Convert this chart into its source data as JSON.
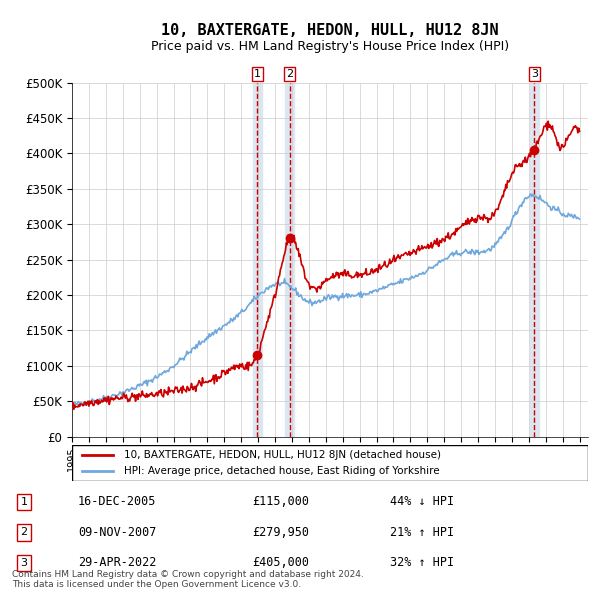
{
  "title": "10, BAXTERGATE, HEDON, HULL, HU12 8JN",
  "subtitle": "Price paid vs. HM Land Registry's House Price Index (HPI)",
  "ylabel": "",
  "ylim": [
    0,
    500000
  ],
  "yticks": [
    0,
    50000,
    100000,
    150000,
    200000,
    250000,
    300000,
    350000,
    400000,
    450000,
    500000
  ],
  "ytick_labels": [
    "£0",
    "£50K",
    "£100K",
    "£150K",
    "£200K",
    "£250K",
    "£300K",
    "£350K",
    "£400K",
    "£450K",
    "£500K"
  ],
  "hpi_color": "#6fa8dc",
  "price_color": "#cc0000",
  "sale_marker_color": "#cc0000",
  "vline_color": "#cc0000",
  "shade_color": "#dce6f1",
  "transaction_label_color": "#cc0000",
  "background_color": "#ffffff",
  "grid_color": "#cccccc",
  "transactions": [
    {
      "id": 1,
      "date_num": 2005.96,
      "price": 115000,
      "date_str": "16-DEC-2005",
      "hpi_pct": "44%",
      "hpi_dir": "↓"
    },
    {
      "id": 2,
      "date_num": 2007.86,
      "price": 279950,
      "date_str": "09-NOV-2007",
      "hpi_pct": "21%",
      "hpi_dir": "↑"
    },
    {
      "id": 3,
      "date_num": 2022.33,
      "price": 405000,
      "date_str": "29-APR-2022",
      "hpi_pct": "32%",
      "hpi_dir": "↑"
    }
  ],
  "legend_entries": [
    "10, BAXTERGATE, HEDON, HULL, HU12 8JN (detached house)",
    "HPI: Average price, detached house, East Riding of Yorkshire"
  ],
  "footer": "Contains HM Land Registry data © Crown copyright and database right 2024.\nThis data is licensed under the Open Government Licence v3.0.",
  "table_rows": [
    [
      1,
      "16-DEC-2005",
      "£115,000",
      "44% ↓ HPI"
    ],
    [
      2,
      "09-NOV-2007",
      "£279,950",
      "21% ↑ HPI"
    ],
    [
      3,
      "29-APR-2022",
      "£405,000",
      "32% ↑ HPI"
    ]
  ]
}
